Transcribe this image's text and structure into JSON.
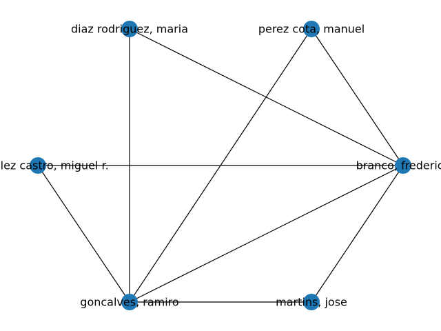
{
  "graph": {
    "node_color": "#1f77b4",
    "edge_color": "#000000",
    "nodes": [
      {
        "id": "diaz",
        "label": "diaz rodriguez, maria"
      },
      {
        "id": "perez",
        "label": "perez cota, manuel"
      },
      {
        "id": "branco",
        "label": "branco, frederico"
      },
      {
        "id": "martins",
        "label": "martins, jose"
      },
      {
        "id": "goncalves",
        "label": "goncalves, ramiro"
      },
      {
        "id": "gonzalez",
        "label": "gonzalez castro, miguel r."
      }
    ],
    "edges": [
      [
        "diaz",
        "branco"
      ],
      [
        "diaz",
        "goncalves"
      ],
      [
        "perez",
        "branco"
      ],
      [
        "perez",
        "goncalves"
      ],
      [
        "gonzalez",
        "branco"
      ],
      [
        "gonzalez",
        "goncalves"
      ],
      [
        "branco",
        "goncalves"
      ],
      [
        "branco",
        "martins"
      ],
      [
        "goncalves",
        "martins"
      ]
    ]
  }
}
